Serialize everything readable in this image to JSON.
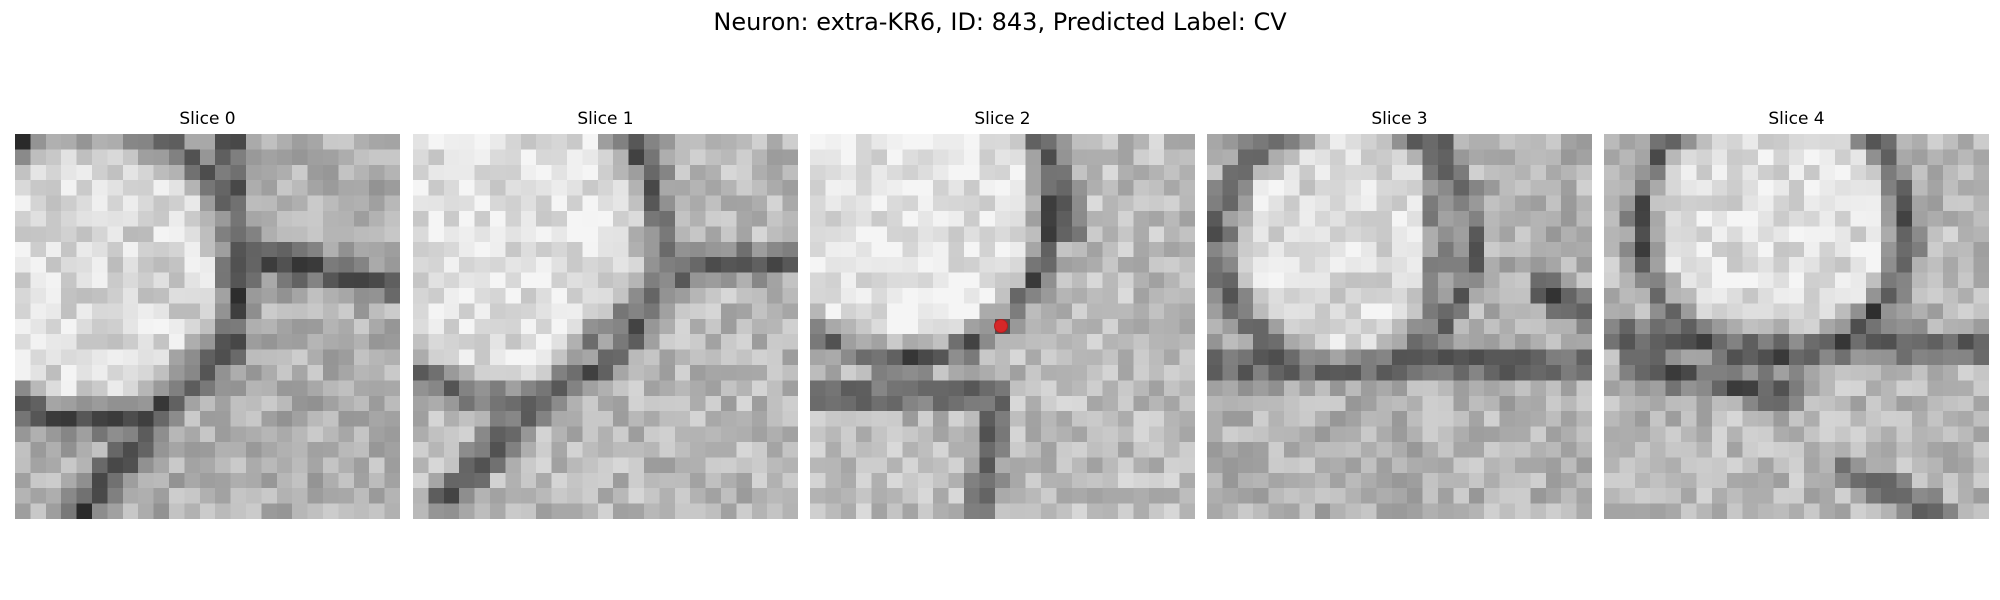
{
  "figure": {
    "title": "Neuron: extra-KR6, ID: 843, Predicted Label: CV"
  },
  "panels": [
    {
      "title": "Slice 0"
    },
    {
      "title": "Slice 1"
    },
    {
      "title": "Slice 2"
    },
    {
      "title": "Slice 3"
    },
    {
      "title": "Slice 4"
    }
  ],
  "image": {
    "colormap": "grayscale",
    "grid": "25x25 pixels per slice",
    "marker_color": "#d62728",
    "marker_slice": "Slice 2"
  }
}
